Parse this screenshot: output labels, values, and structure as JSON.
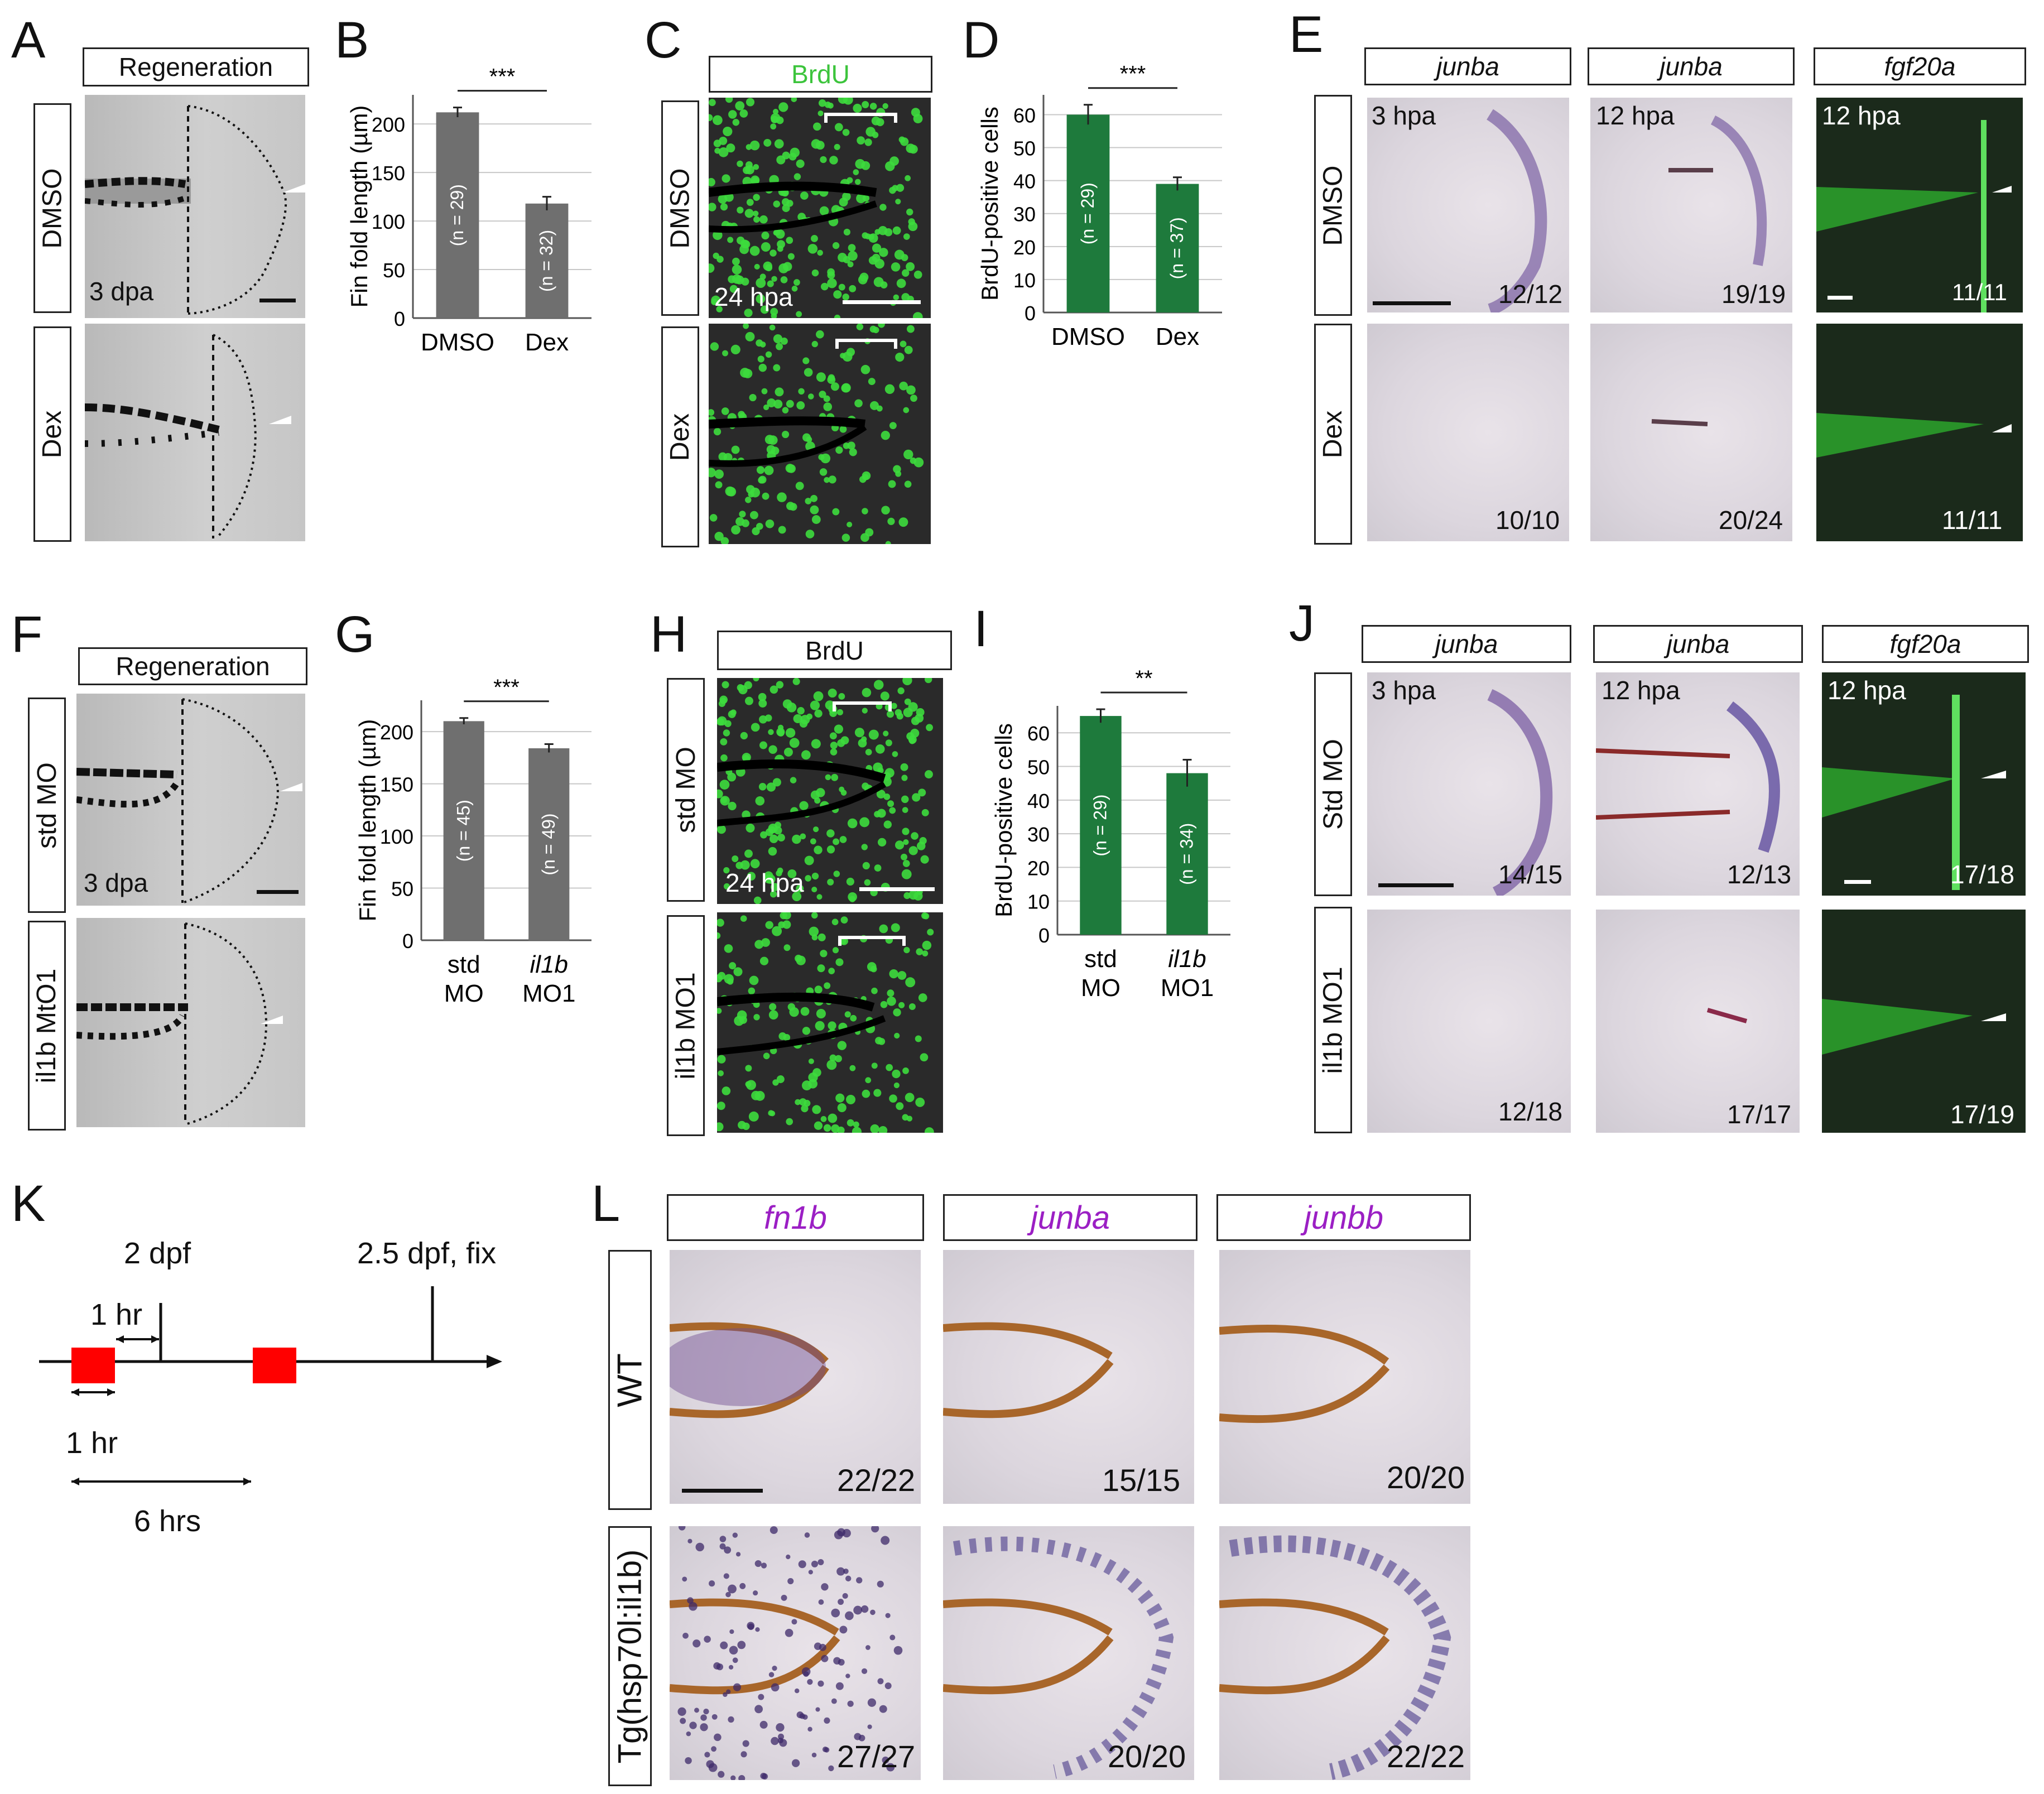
{
  "panel_letters": [
    "A",
    "B",
    "C",
    "D",
    "E",
    "F",
    "G",
    "H",
    "I",
    "J",
    "K",
    "L"
  ],
  "A": {
    "header": "Regeneration",
    "rows": [
      "DMSO",
      "Dex"
    ],
    "stage": "3 dpa"
  },
  "C": {
    "header": "BrdU",
    "rows": [
      "DMSO",
      "Dex"
    ],
    "stage": "24 hpa",
    "header_color": "#3cc43c"
  },
  "E": {
    "headers": [
      "junba",
      "junba",
      "fgf20a"
    ],
    "rows": [
      "DMSO",
      "Dex"
    ],
    "stages": [
      "3 hpa",
      "12 hpa",
      "12 hpa"
    ],
    "counts": [
      [
        "12/12",
        "19/19",
        "11/11"
      ],
      [
        "10/10",
        "20/24",
        "11/11"
      ]
    ]
  },
  "F": {
    "header": "Regeneration",
    "rows": [
      "std MO",
      "il1b MtO1"
    ],
    "stage": "3 dpa"
  },
  "H": {
    "header": "BrdU",
    "rows": [
      "std MO",
      "il1b MO1"
    ],
    "stage": "24 hpa"
  },
  "J": {
    "headers": [
      "junba",
      "junba",
      "fgf20a"
    ],
    "rows": [
      "Std MO",
      "il1b MO1"
    ],
    "stages": [
      "3 hpa",
      "12 hpa",
      "12 hpa"
    ],
    "counts": [
      [
        "14/15",
        "12/13",
        "17/18"
      ],
      [
        "12/18",
        "17/17",
        "17/19"
      ]
    ]
  },
  "K": {
    "label_2dpf": "2 dpf",
    "label_fix": "2.5 dpf, fix",
    "label_1hr_top": "1 hr",
    "label_1hr_bottom": "1 hr",
    "label_6hrs": "6 hrs",
    "pulse_color": "#ff0000"
  },
  "L": {
    "headers": [
      "fn1b",
      "junba",
      "junbb"
    ],
    "header_color": "#9b1fc4",
    "rows": [
      "WT",
      "Tg(hsp70l:il1b)"
    ],
    "counts": [
      [
        "22/22",
        "15/15",
        "20/20"
      ],
      [
        "27/27",
        "20/20",
        "22/22"
      ]
    ]
  },
  "chart_data": [
    {
      "panel": "B",
      "type": "bar",
      "categories": [
        "DMSO",
        "Dex"
      ],
      "values": [
        212,
        118
      ],
      "errors": [
        5,
        7
      ],
      "n_labels": [
        "(n = 29)",
        "(n = 32)"
      ],
      "ylabel": "Fin fold length (µm)",
      "yticks": [
        0,
        50,
        100,
        150,
        200
      ],
      "ylim": [
        0,
        230
      ],
      "significance": "***",
      "bar_color": "#6f6f6f",
      "grid": true
    },
    {
      "panel": "D",
      "type": "bar",
      "categories": [
        "DMSO",
        "Dex"
      ],
      "values": [
        60,
        39
      ],
      "errors": [
        3,
        2
      ],
      "n_labels": [
        "(n = 29)",
        "(n = 37)"
      ],
      "ylabel": "BrdU-positive cells",
      "yticks": [
        0,
        10,
        20,
        30,
        40,
        50,
        60
      ],
      "ylim": [
        0,
        66
      ],
      "significance": "***",
      "bar_color": "#1e7a3c",
      "grid": true
    },
    {
      "panel": "G",
      "type": "bar",
      "categories": [
        "std MO",
        "il1b MO1"
      ],
      "values": [
        210,
        184
      ],
      "errors": [
        3,
        4
      ],
      "n_labels": [
        "(n = 45)",
        "(n = 49)"
      ],
      "ylabel": "Fin fold length (µm)",
      "yticks": [
        0,
        50,
        100,
        150,
        200
      ],
      "ylim": [
        0,
        230
      ],
      "significance": "***",
      "bar_color": "#6f6f6f",
      "grid": true
    },
    {
      "panel": "I",
      "type": "bar",
      "categories": [
        "std MO",
        "il1b MO1"
      ],
      "values": [
        65,
        48
      ],
      "errors": [
        2,
        4
      ],
      "n_labels": [
        "(n = 29)",
        "(n = 34)"
      ],
      "ylabel": "BrdU-positive cells",
      "yticks": [
        0,
        10,
        20,
        30,
        40,
        50,
        60
      ],
      "ylim": [
        0,
        68
      ],
      "significance": "**",
      "bar_color": "#1e7a3c",
      "grid": true
    }
  ]
}
